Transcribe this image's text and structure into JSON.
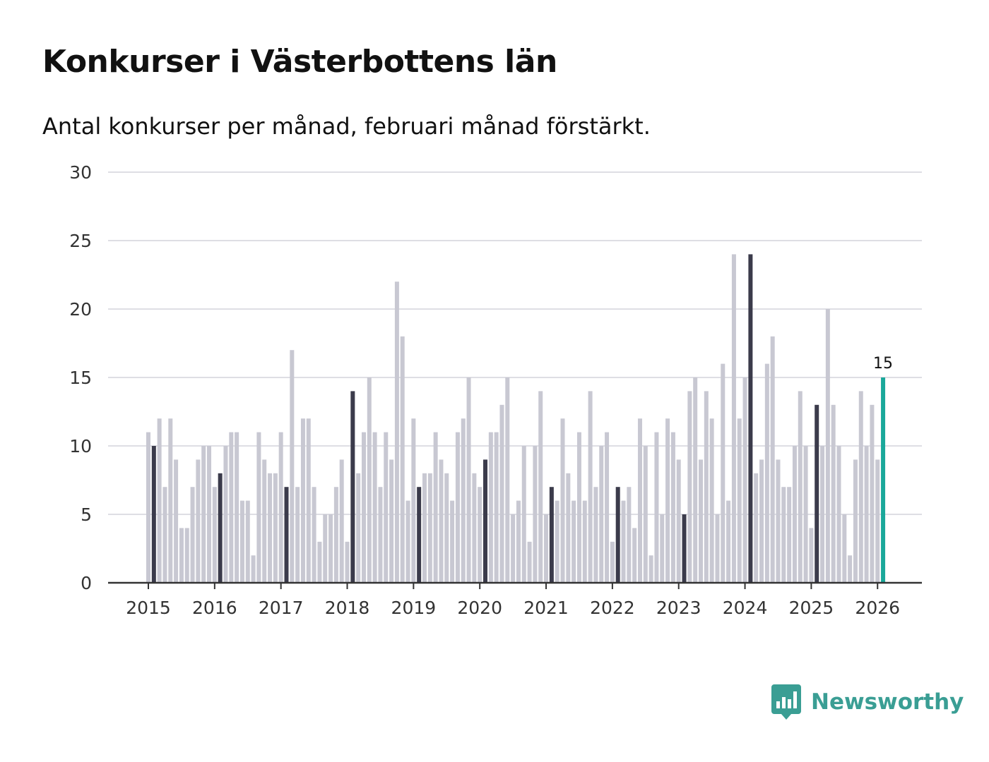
{
  "chart_data": {
    "type": "bar",
    "title": "Konkurser i Västerbottens län",
    "subtitle": "Antal konkurser per månad, februari månad förstärkt.",
    "xlabel": "",
    "ylabel": "",
    "ylim": [
      0,
      30
    ],
    "y_ticks": [
      "0",
      "5",
      "10",
      "15",
      "20",
      "25",
      "30"
    ],
    "x_tick_labels": [
      "2015",
      "2016",
      "2017",
      "2018",
      "2019",
      "2020",
      "2021",
      "2022",
      "2023",
      "2024",
      "2025",
      "2026"
    ],
    "start_year": 2015,
    "start_month": 1,
    "highlight_month": 2,
    "grid": true,
    "colors": {
      "regular": "#c8c8d2",
      "highlight": "#3b3b4b",
      "latest": "#1aa89a",
      "grid": "#dedee4",
      "axis": "#333333"
    },
    "values": [
      11,
      10,
      12,
      7,
      12,
      9,
      4,
      4,
      7,
      9,
      10,
      10,
      7,
      8,
      10,
      11,
      11,
      6,
      6,
      2,
      11,
      9,
      8,
      8,
      11,
      7,
      17,
      7,
      12,
      12,
      7,
      3,
      5,
      5,
      7,
      9,
      3,
      14,
      8,
      11,
      15,
      11,
      7,
      11,
      9,
      22,
      18,
      6,
      12,
      7,
      8,
      8,
      11,
      9,
      8,
      6,
      11,
      12,
      15,
      8,
      7,
      9,
      11,
      11,
      13,
      15,
      5,
      6,
      10,
      3,
      10,
      14,
      5,
      7,
      6,
      12,
      8,
      6,
      11,
      6,
      14,
      7,
      10,
      11,
      3,
      7,
      6,
      7,
      4,
      12,
      10,
      2,
      11,
      5,
      12,
      11,
      9,
      5,
      14,
      15,
      9,
      14,
      12,
      5,
      16,
      6,
      24,
      12,
      15,
      24,
      8,
      9,
      16,
      18,
      9,
      7,
      7,
      10,
      14,
      10,
      4,
      13,
      10,
      20,
      13,
      10,
      5,
      2,
      9,
      14,
      10,
      13,
      9,
      15
    ],
    "last_value_label": "15"
  },
  "brand": {
    "name": "Newsworthy",
    "icon": "bar-chart-speech-icon"
  }
}
